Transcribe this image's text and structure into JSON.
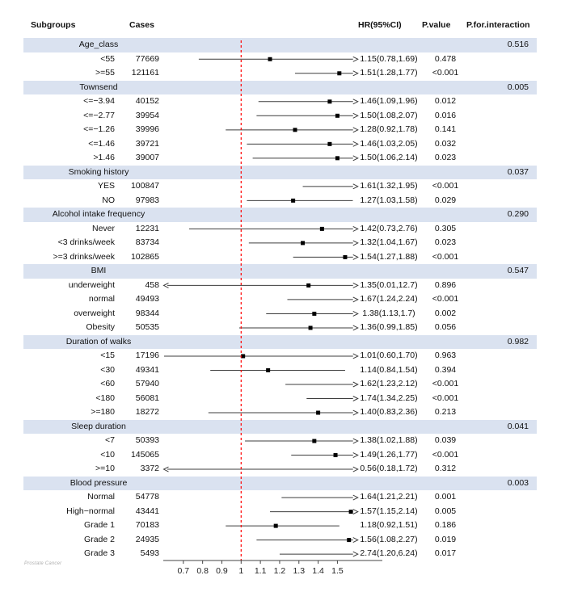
{
  "header": {
    "subgroups": "Subgroups",
    "cases": "Cases",
    "hr": "HR(95%CI)",
    "pvalue": "P.value",
    "pinteraction": "P.for.interaction"
  },
  "footnote": "Prostate Cancer",
  "colors": {
    "band": "#dae2f0",
    "reference_line": "#ff0000",
    "ci_line": "#3c3c3c",
    "marker": "#000000",
    "axis": "#444444"
  },
  "chart_data": {
    "type": "scatter",
    "subtype": "forest-plot",
    "title": "",
    "xlabel": "",
    "axis": {
      "tick_labels": [
        "0.7",
        "0.8",
        "0.9",
        "1",
        "1.1",
        "1.2",
        "1.3",
        "1.4",
        "1.5"
      ],
      "tick_values": [
        0.7,
        0.8,
        0.9,
        1,
        1.1,
        1.2,
        1.3,
        1.4,
        1.5
      ],
      "reference_value": 1,
      "clip_range": [
        0.6,
        1.6
      ]
    },
    "groups": [
      {
        "label": "Age_class",
        "p_interaction": "0.516",
        "rows": [
          {
            "label": "<55",
            "cases": "77669",
            "hr": 1.15,
            "ci": [
              0.78,
              1.69
            ],
            "hr_text": "1.15(0.78,1.69)",
            "p": "0.478"
          },
          {
            "label": ">=55",
            "cases": "121161",
            "hr": 1.51,
            "ci": [
              1.28,
              1.77
            ],
            "hr_text": "1.51(1.28,1.77)",
            "p": "<0.001"
          }
        ]
      },
      {
        "label": "Townsend",
        "p_interaction": "0.005",
        "rows": [
          {
            "label": "<=−3.94",
            "cases": "40152",
            "hr": 1.46,
            "ci": [
              1.09,
              1.96
            ],
            "hr_text": "1.46(1.09,1.96)",
            "p": "0.012"
          },
          {
            "label": "<=−2.77",
            "cases": "39954",
            "hr": 1.5,
            "ci": [
              1.08,
              2.07
            ],
            "hr_text": "1.50(1.08,2.07)",
            "p": "0.016"
          },
          {
            "label": "<=−1.26",
            "cases": "39996",
            "hr": 1.28,
            "ci": [
              0.92,
              1.78
            ],
            "hr_text": "1.28(0.92,1.78)",
            "p": "0.141"
          },
          {
            "label": "<=1.46",
            "cases": "39721",
            "hr": 1.46,
            "ci": [
              1.03,
              2.05
            ],
            "hr_text": "1.46(1.03,2.05)",
            "p": "0.032"
          },
          {
            "label": ">1.46",
            "cases": "39007",
            "hr": 1.5,
            "ci": [
              1.06,
              2.14
            ],
            "hr_text": "1.50(1.06,2.14)",
            "p": "0.023"
          }
        ]
      },
      {
        "label": "Smoking history",
        "p_interaction": "0.037",
        "rows": [
          {
            "label": "YES",
            "cases": "100847",
            "hr": 1.61,
            "ci": [
              1.32,
              1.95
            ],
            "hr_text": "1.61(1.32,1.95)",
            "p": "<0.001"
          },
          {
            "label": "NO",
            "cases": "97983",
            "hr": 1.27,
            "ci": [
              1.03,
              1.58
            ],
            "hr_text": "1.27(1.03,1.58)",
            "p": "0.029"
          }
        ]
      },
      {
        "label": "Alcohol intake frequency",
        "p_interaction": "0.290",
        "rows": [
          {
            "label": "Never",
            "cases": "12231",
            "hr": 1.42,
            "ci": [
              0.73,
              2.76
            ],
            "hr_text": "1.42(0.73,2.76)",
            "p": "0.305"
          },
          {
            "label": "<3 drinks/week",
            "cases": "83734",
            "hr": 1.32,
            "ci": [
              1.04,
              1.67
            ],
            "hr_text": "1.32(1.04,1.67)",
            "p": "0.023"
          },
          {
            "label": ">=3 drinks/week",
            "cases": "102865",
            "hr": 1.54,
            "ci": [
              1.27,
              1.88
            ],
            "hr_text": "1.54(1.27,1.88)",
            "p": "<0.001"
          }
        ]
      },
      {
        "label": "BMI",
        "p_interaction": "0.547",
        "rows": [
          {
            "label": "underweight",
            "cases": "458",
            "hr": 1.35,
            "ci": [
              0.01,
              12.7
            ],
            "hr_text": "1.35(0.01,12.7)",
            "p": "0.896"
          },
          {
            "label": "normal",
            "cases": "49493",
            "hr": 1.67,
            "ci": [
              1.24,
              2.24
            ],
            "hr_text": "1.67(1.24,2.24)",
            "p": "<0.001"
          },
          {
            "label": "overweight",
            "cases": "98344",
            "hr": 1.38,
            "ci": [
              1.13,
              1.7
            ],
            "hr_text": "1.38(1.13,1.7)",
            "p": "0.002"
          },
          {
            "label": "Obesity",
            "cases": "50535",
            "hr": 1.36,
            "ci": [
              0.99,
              1.85
            ],
            "hr_text": "1.36(0.99,1.85)",
            "p": "0.056"
          }
        ]
      },
      {
        "label": "Duration of walks",
        "p_interaction": "0.982",
        "rows": [
          {
            "label": "<15",
            "cases": "17196",
            "hr": 1.01,
            "ci": [
              0.6,
              1.7
            ],
            "hr_text": "1.01(0.60,1.70)",
            "p": "0.963"
          },
          {
            "label": "<30",
            "cases": "49341",
            "hr": 1.14,
            "ci": [
              0.84,
              1.54
            ],
            "hr_text": "1.14(0.84,1.54)",
            "p": "0.394"
          },
          {
            "label": "<60",
            "cases": "57940",
            "hr": 1.62,
            "ci": [
              1.23,
              2.12
            ],
            "hr_text": "1.62(1.23,2.12)",
            "p": "<0.001"
          },
          {
            "label": "<180",
            "cases": "56081",
            "hr": 1.74,
            "ci": [
              1.34,
              2.25
            ],
            "hr_text": "1.74(1.34,2.25)",
            "p": "<0.001"
          },
          {
            "label": ">=180",
            "cases": "18272",
            "hr": 1.4,
            "ci": [
              0.83,
              2.36
            ],
            "hr_text": "1.40(0.83,2.36)",
            "p": "0.213"
          }
        ]
      },
      {
        "label": "Sleep duration",
        "p_interaction": "0.041",
        "rows": [
          {
            "label": "<7",
            "cases": "50393",
            "hr": 1.38,
            "ci": [
              1.02,
              1.88
            ],
            "hr_text": "1.38(1.02,1.88)",
            "p": "0.039"
          },
          {
            "label": "<10",
            "cases": "145065",
            "hr": 1.49,
            "ci": [
              1.26,
              1.77
            ],
            "hr_text": "1.49(1.26,1.77)",
            "p": "<0.001"
          },
          {
            "label": ">=10",
            "cases": "3372",
            "hr": 0.56,
            "ci": [
              0.18,
              1.72
            ],
            "hr_text": "0.56(0.18,1.72)",
            "p": "0.312"
          }
        ]
      },
      {
        "label": "Blood pressure",
        "p_interaction": "0.003",
        "rows": [
          {
            "label": "Normal",
            "cases": "54778",
            "hr": 1.64,
            "ci": [
              1.21,
              2.21
            ],
            "hr_text": "1.64(1.21,2.21)",
            "p": "0.001"
          },
          {
            "label": "High−normal",
            "cases": "43441",
            "hr": 1.57,
            "ci": [
              1.15,
              2.14
            ],
            "hr_text": "1.57(1.15,2.14)",
            "p": "0.005"
          },
          {
            "label": "Grade 1",
            "cases": "70183",
            "hr": 1.18,
            "ci": [
              0.92,
              1.51
            ],
            "hr_text": "1.18(0.92,1.51)",
            "p": "0.186"
          },
          {
            "label": "Grade 2",
            "cases": "24935",
            "hr": 1.56,
            "ci": [
              1.08,
              2.27
            ],
            "hr_text": "1.56(1.08,2.27)",
            "p": "0.019"
          },
          {
            "label": "Grade 3",
            "cases": "5493",
            "hr": 2.74,
            "ci": [
              1.2,
              6.24
            ],
            "hr_text": "2.74(1.20,6.24)",
            "p": "0.017"
          }
        ]
      }
    ]
  }
}
